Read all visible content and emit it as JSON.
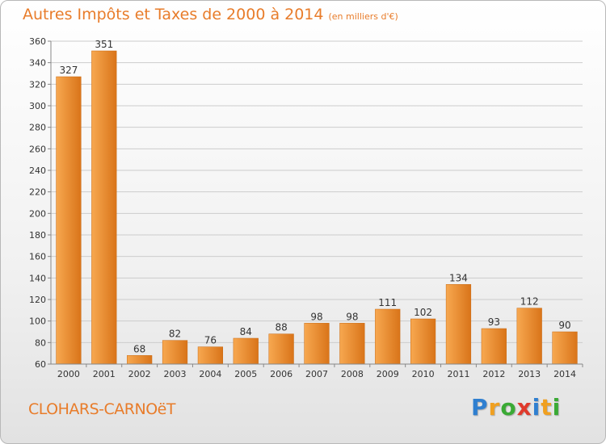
{
  "header": {
    "title": "Autres Impôts et Taxes de 2000 à 2014",
    "subtitle": "(en milliers d'€)"
  },
  "footer": {
    "commune": "CLOHARS-CARNOëT"
  },
  "logo": {
    "letters": [
      "P",
      "r",
      "o",
      "x",
      "i",
      "t",
      "i"
    ],
    "colors": [
      "#2f7fd0",
      "#f0a020",
      "#3aaa35",
      "#e03a2c",
      "#2f7fd0",
      "#f0a020",
      "#3aaa35"
    ]
  },
  "colors": {
    "bar_light": "#f7a850",
    "bar_dark": "#d97419",
    "title": "#e87c2a",
    "grid": "#cccccc"
  },
  "chart_data": {
    "type": "bar",
    "title": "Autres Impôts et Taxes de 2000 à 2014",
    "subtitle": "(en milliers d'€)",
    "categories": [
      "2000",
      "2001",
      "2002",
      "2003",
      "2004",
      "2005",
      "2006",
      "2007",
      "2008",
      "2009",
      "2010",
      "2011",
      "2012",
      "2013",
      "2014"
    ],
    "values": [
      327,
      351,
      68,
      82,
      76,
      84,
      88,
      98,
      98,
      111,
      102,
      134,
      93,
      112,
      90
    ],
    "ylim": [
      60,
      360
    ],
    "yticks": [
      60,
      80,
      100,
      120,
      140,
      160,
      180,
      200,
      220,
      240,
      260,
      280,
      300,
      320,
      340,
      360
    ],
    "grid": true,
    "legend": "none"
  }
}
